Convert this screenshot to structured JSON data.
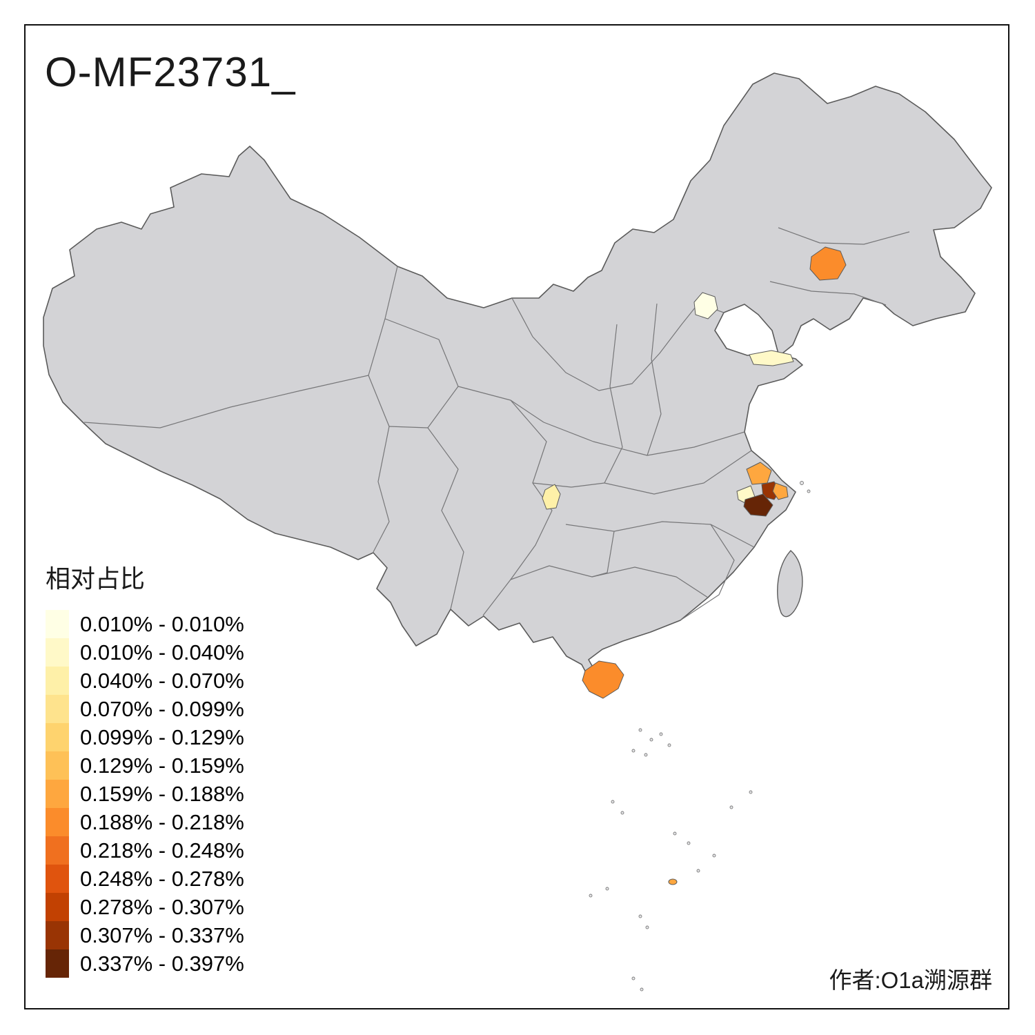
{
  "title": "O-MF23731_",
  "attribution": "作者:O1a溯源群",
  "legend": {
    "title": "相对占比",
    "classes": [
      {
        "label": "0.010% - 0.010%",
        "color": "#FFFFE5"
      },
      {
        "label": "0.010% - 0.040%",
        "color": "#FFF9C8"
      },
      {
        "label": "0.040% - 0.070%",
        "color": "#FEF0A8"
      },
      {
        "label": "0.070% - 0.099%",
        "color": "#FEE38D"
      },
      {
        "label": "0.099% - 0.129%",
        "color": "#FED36E"
      },
      {
        "label": "0.129% - 0.159%",
        "color": "#FEC157"
      },
      {
        "label": "0.159% - 0.188%",
        "color": "#FEA73F"
      },
      {
        "label": "0.188% - 0.218%",
        "color": "#FB8C2B"
      },
      {
        "label": "0.218% - 0.248%",
        "color": "#F0701F"
      },
      {
        "label": "0.248% - 0.278%",
        "color": "#E0540E"
      },
      {
        "label": "0.278% - 0.307%",
        "color": "#C24102"
      },
      {
        "label": "0.307% - 0.337%",
        "color": "#993404"
      },
      {
        "label": "0.337% - 0.397%",
        "color": "#662506"
      }
    ]
  },
  "map": {
    "land_fill": "#D3D3D6",
    "outline_color": "#5A5A5A",
    "province_border_color": "#767678",
    "regions": [
      {
        "id": "region-northeast",
        "class_index": 7
      },
      {
        "id": "region-beijing",
        "class_index": 0
      },
      {
        "id": "region-shandong",
        "class_index": 1
      },
      {
        "id": "region-southwest",
        "class_index": 2
      },
      {
        "id": "region-east-1",
        "class_index": 6
      },
      {
        "id": "region-east-2",
        "class_index": 1
      },
      {
        "id": "region-east-3",
        "class_index": 11
      },
      {
        "id": "region-east-4",
        "class_index": 12
      },
      {
        "id": "region-east-5",
        "class_index": 6
      },
      {
        "id": "region-hainan",
        "class_index": 7
      },
      {
        "id": "region-island-dot",
        "class_index": 6
      }
    ]
  }
}
